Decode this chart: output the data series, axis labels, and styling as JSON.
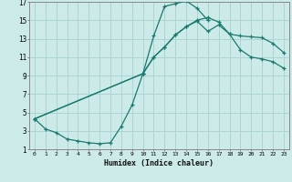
{
  "xlabel": "Humidex (Indice chaleur)",
  "bg_color": "#cceae8",
  "grid_color": "#aad4d2",
  "line_color": "#1a7a6e",
  "xlim": [
    -0.5,
    23.5
  ],
  "ylim": [
    1,
    17
  ],
  "xticks": [
    0,
    1,
    2,
    3,
    4,
    5,
    6,
    7,
    8,
    9,
    10,
    11,
    12,
    13,
    14,
    15,
    16,
    17,
    18,
    19,
    20,
    21,
    22,
    23
  ],
  "yticks": [
    1,
    3,
    5,
    7,
    9,
    11,
    13,
    15,
    17
  ],
  "line1_x": [
    0,
    1,
    2,
    3,
    4,
    5,
    6,
    7,
    8,
    9,
    10,
    11,
    12,
    13,
    14,
    15,
    16
  ],
  "line1_y": [
    4.3,
    3.2,
    2.8,
    2.1,
    1.9,
    1.7,
    1.6,
    1.7,
    3.5,
    5.8,
    9.2,
    13.3,
    16.5,
    16.8,
    17.1,
    16.3,
    15.0
  ],
  "line2_x": [
    0,
    10,
    11,
    12,
    13,
    14,
    15,
    16,
    17,
    18,
    19,
    20,
    21,
    22,
    23
  ],
  "line2_y": [
    4.3,
    9.2,
    11.0,
    12.1,
    13.4,
    14.3,
    14.9,
    13.8,
    14.5,
    13.5,
    13.3,
    13.2,
    13.1,
    12.5,
    11.5
  ],
  "line3_x": [
    0,
    10,
    11,
    12,
    13,
    14,
    15,
    16,
    17,
    18,
    19,
    20,
    21,
    22,
    23
  ],
  "line3_y": [
    4.3,
    9.2,
    11.0,
    12.1,
    13.4,
    14.3,
    15.0,
    15.3,
    14.8,
    13.5,
    11.8,
    11.0,
    10.8,
    10.5,
    9.8
  ]
}
